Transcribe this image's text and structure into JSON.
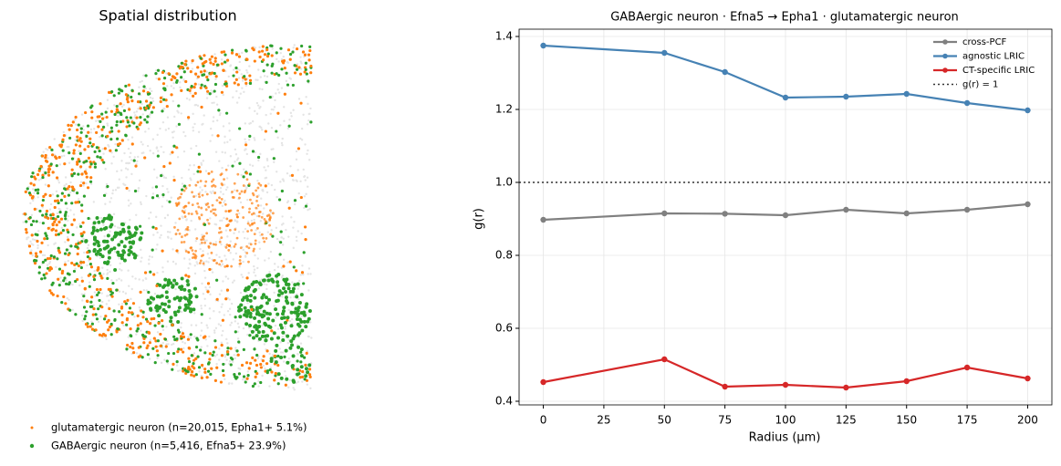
{
  "chart_data": [
    {
      "type": "spatial",
      "title": "Spatial distribution",
      "series": [
        {
          "name": "glutamatergic neuron  (n=20,015,  Epha1+ 5.1%)",
          "color": "#ff7f0e"
        },
        {
          "name": "GABAergic neuron  (n=5,416,  Efna5+ 23.9%)",
          "color": "#2ca02c"
        }
      ]
    },
    {
      "type": "line",
      "title": "GABAergic neuron  ·  Efna5 → Epha1  ·  glutamatergic neuron",
      "x_label": "Radius (μm)",
      "y_label": "g(r)",
      "x": [
        0,
        50,
        75,
        100,
        125,
        150,
        175,
        200
      ],
      "series": [
        {
          "name": "cross-PCF",
          "color": "#808080",
          "values": [
            0.8975,
            0.915,
            0.914,
            0.91,
            0.925,
            0.915,
            0.925,
            0.94
          ]
        },
        {
          "name": "agnostic LRIC",
          "color": "#4682b4",
          "values": [
            1.375,
            1.355,
            1.3025,
            1.2325,
            1.235,
            1.2425,
            1.2175,
            1.1975
          ]
        },
        {
          "name": "CT-specific LRIC",
          "color": "#d62728",
          "values": [
            0.4525,
            0.515,
            0.44,
            0.445,
            0.4375,
            0.455,
            0.4925,
            0.4625
          ]
        }
      ],
      "reference_line": {
        "value": 1,
        "label": "g(r) = 1",
        "color": "#333333"
      },
      "xlim": [
        -10,
        210
      ],
      "xticks": [
        0,
        25,
        50,
        75,
        100,
        125,
        150,
        175,
        200
      ],
      "ylim": [
        0.39,
        1.42
      ],
      "yticks": [
        0.4,
        0.6,
        0.8,
        1.0,
        1.2,
        1.4
      ],
      "grid": true,
      "legend": "upper-right"
    }
  ]
}
